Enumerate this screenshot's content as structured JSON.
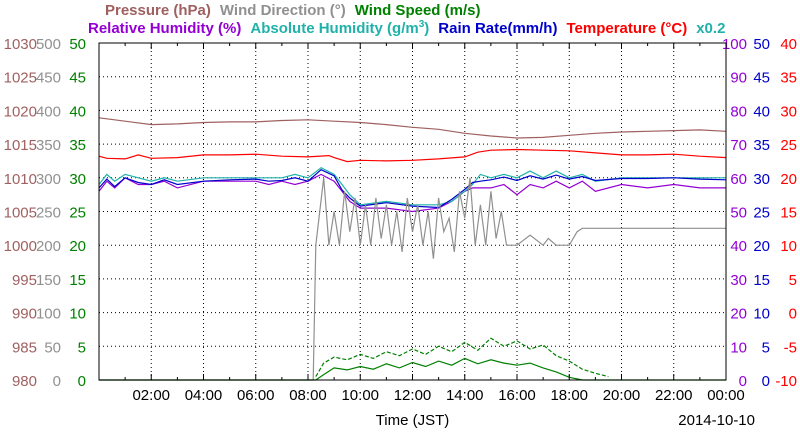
{
  "chart_data": {
    "type": "line",
    "legend_row1": [
      {
        "text": "Pressure (hPa)",
        "color": "#a06060"
      },
      {
        "text": "Wind Direction (°)",
        "color": "#909090"
      },
      {
        "text": "Wind Speed (m/s)",
        "color": "#008000"
      }
    ],
    "legend_row2": [
      {
        "text": "Relative Humidity (%)",
        "color": "#9400d3"
      },
      {
        "text": "Absolute Humidity (g/m",
        "sup": "3",
        "tail": ")",
        "color": "#20b2aa"
      },
      {
        "text": "Rain Rate(mm/h)",
        "color": "#0000cd"
      },
      {
        "text": "Temperature (°C)",
        "color": "#ff0000"
      },
      {
        "text": "x0.2",
        "color": "#20b2aa"
      }
    ],
    "xlabel": "Time (JST)",
    "date": "2014-10-10",
    "x_ticks": [
      "02:00",
      "04:00",
      "06:00",
      "08:00",
      "10:00",
      "12:00",
      "14:00",
      "16:00",
      "18:00",
      "20:00",
      "22:00",
      "00:00"
    ],
    "axes": {
      "pressure": {
        "color": "#a06060",
        "ticks": [
          "1030",
          "1025",
          "1020",
          "1015",
          "1010",
          "1005",
          "1000",
          "995",
          "990",
          "985",
          "980"
        ],
        "range": [
          980,
          1030
        ]
      },
      "wind_direction": {
        "color": "#909090",
        "ticks": [
          "500",
          "450",
          "400",
          "350",
          "300",
          "250",
          "200",
          "150",
          "100",
          "50",
          "0"
        ],
        "range": [
          0,
          500
        ]
      },
      "wind_speed": {
        "color": "#008000",
        "ticks": [
          "50",
          "45",
          "40",
          "35",
          "30",
          "25",
          "20",
          "15",
          "10",
          "5",
          "0"
        ],
        "range": [
          0,
          50
        ]
      },
      "humidity": {
        "color": "#9400d3",
        "ticks": [
          "100",
          "90",
          "80",
          "70",
          "60",
          "50",
          "40",
          "30",
          "20",
          "10",
          "0"
        ],
        "range": [
          0,
          100
        ]
      },
      "rain_rate": {
        "color": "#0000cd",
        "ticks": [
          "50",
          "45",
          "40",
          "35",
          "30",
          "25",
          "20",
          "15",
          "10",
          "5",
          "0"
        ],
        "range": [
          0,
          50
        ]
      },
      "temperature": {
        "color": "#ff0000",
        "ticks": [
          "40",
          "35",
          "30",
          "25",
          "20",
          "15",
          "10",
          "5",
          "0",
          "-5",
          "-10"
        ],
        "range": [
          -10,
          40
        ]
      }
    },
    "hours_range": [
      0,
      24
    ],
    "series": [
      {
        "name": "Pressure (hPa)",
        "axis": "pressure",
        "color": "#a06060",
        "x": [
          0,
          1,
          2,
          3,
          4,
          5,
          6,
          7,
          8,
          9,
          10,
          11,
          12,
          13,
          14,
          15,
          16,
          17,
          18,
          19,
          20,
          21,
          22,
          23,
          24
        ],
        "y": [
          1018.9,
          1018.4,
          1017.9,
          1018.0,
          1018.2,
          1018.3,
          1018.3,
          1018.5,
          1018.6,
          1018.4,
          1018.2,
          1017.9,
          1017.5,
          1017.2,
          1016.6,
          1016.2,
          1015.9,
          1016.0,
          1016.3,
          1016.6,
          1016.8,
          1016.9,
          1017.0,
          1017.1,
          1016.9
        ]
      },
      {
        "name": "Temperature (°C)",
        "axis": "temperature",
        "color": "#ff0000",
        "x": [
          0,
          0.3,
          1,
          1.5,
          2,
          3,
          4,
          5,
          6,
          7,
          8,
          8.8,
          9,
          9.5,
          10,
          11,
          12,
          13,
          14,
          14.5,
          15,
          16,
          17,
          18,
          19,
          20,
          21,
          22,
          23,
          24
        ],
        "y": [
          23.2,
          22.9,
          22.8,
          23.4,
          22.9,
          23.0,
          23.4,
          23.4,
          23.5,
          23.2,
          23.1,
          23.3,
          23.0,
          22.4,
          22.6,
          22.5,
          22.6,
          22.8,
          23.1,
          23.8,
          24.1,
          24.2,
          24.1,
          24.0,
          23.7,
          23.4,
          23.4,
          23.5,
          23.2,
          23.0
        ]
      },
      {
        "name": "Relative Humidity (%)",
        "axis": "humidity",
        "color": "#9400d3",
        "x": [
          0,
          0.3,
          0.6,
          1,
          1.5,
          2,
          2.5,
          3,
          4,
          5,
          6,
          6.5,
          7,
          7.5,
          8,
          8.5,
          9,
          9.3,
          9.6,
          10,
          11,
          12,
          13,
          13.5,
          14,
          14.3,
          14.6,
          15,
          15.5,
          16,
          16.5,
          17,
          17.5,
          18,
          18.5,
          19,
          20,
          21,
          22,
          23,
          24
        ],
        "y": [
          56,
          59,
          57,
          60,
          58,
          58,
          59,
          57,
          59,
          59,
          59,
          58,
          59,
          58,
          59,
          61,
          59,
          56,
          53,
          51,
          51,
          50,
          51,
          53,
          56,
          57,
          57,
          57,
          58,
          55,
          58,
          57,
          59,
          57,
          59,
          56,
          58,
          57,
          58,
          57,
          57
        ]
      },
      {
        "name": "Absolute Humidity (g/m3)",
        "axis": "humidity",
        "color": "#20b2aa",
        "x": [
          0,
          0.3,
          0.6,
          1,
          1.5,
          2,
          2.5,
          3,
          4,
          5,
          6,
          6.5,
          7,
          7.5,
          8,
          8.5,
          9,
          9.3,
          9.6,
          10,
          11,
          12,
          13,
          13.5,
          14,
          14.3,
          14.6,
          15,
          15.5,
          16,
          16.5,
          17,
          17.5,
          18,
          18.5,
          19,
          20,
          21,
          22,
          23,
          24
        ],
        "y": [
          58,
          61,
          59,
          61,
          60,
          59,
          60,
          59,
          60,
          60,
          60,
          60,
          60,
          61,
          60,
          63,
          61,
          58,
          55,
          52,
          53,
          52,
          52,
          53,
          56,
          58,
          61,
          60,
          61,
          60,
          62,
          60,
          62,
          60,
          61,
          59,
          60,
          60,
          60,
          60,
          60
        ]
      },
      {
        "name": "Rain Rate(mm/h)",
        "axis": "rain_rate",
        "color": "#0000cd",
        "x": [
          0,
          0.3,
          0.6,
          1,
          1.5,
          2,
          2.5,
          3,
          4,
          5,
          6,
          6.5,
          7,
          7.5,
          8,
          8.5,
          9,
          9.3,
          9.6,
          10,
          11,
          12,
          13,
          13.5,
          14,
          14.3,
          14.6,
          15,
          15.5,
          16,
          16.5,
          17,
          17.5,
          18,
          18.5,
          19,
          20,
          21,
          22,
          23,
          24
        ],
        "y": [
          28.5,
          29.8,
          28.7,
          30.0,
          29.3,
          29.0,
          29.7,
          29.0,
          29.5,
          29.7,
          29.8,
          29.5,
          29.6,
          30.0,
          29.5,
          31.2,
          30.3,
          28.2,
          27.0,
          25.8,
          26.3,
          25.8,
          25.6,
          26.8,
          28.3,
          29.3,
          29.5,
          29.7,
          30.1,
          29.6,
          30.3,
          29.8,
          30.4,
          29.8,
          30.2,
          29.6,
          29.9,
          29.9,
          30.0,
          29.8,
          29.7
        ]
      },
      {
        "name": "Wind Direction (°)",
        "axis": "wind_direction",
        "color": "#909090",
        "x": [
          0,
          8.2,
          8.3,
          8.6,
          8.8,
          9.0,
          9.2,
          9.4,
          9.6,
          9.8,
          10.0,
          10.2,
          10.4,
          10.6,
          10.8,
          11.0,
          11.2,
          11.4,
          11.6,
          11.8,
          12.0,
          12.2,
          12.4,
          12.6,
          12.8,
          13.0,
          13.2,
          13.4,
          13.6,
          13.8,
          14.0,
          14.2,
          14.4,
          14.6,
          14.8,
          15.0,
          15.2,
          15.4,
          15.6,
          16.0,
          16.5,
          17.0,
          17.2,
          17.5,
          18.0,
          18.3,
          18.5,
          24
        ],
        "y": [
          0,
          0,
          200,
          300,
          200,
          250,
          200,
          280,
          220,
          270,
          200,
          260,
          200,
          270,
          210,
          260,
          200,
          250,
          190,
          270,
          220,
          260,
          200,
          250,
          180,
          270,
          220,
          240,
          190,
          280,
          240,
          300,
          200,
          260,
          200,
          280,
          210,
          250,
          200,
          200,
          215,
          200,
          210,
          200,
          200,
          220,
          225,
          225
        ]
      },
      {
        "name": "Wind Speed (m/s)",
        "axis": "wind_speed",
        "color": "#008000",
        "dashed": false,
        "x": [
          0,
          8.3,
          8.6,
          9.0,
          9.5,
          10.0,
          10.5,
          11.0,
          11.5,
          12.0,
          12.5,
          13.0,
          13.5,
          14.0,
          14.5,
          15.0,
          15.5,
          16.0,
          16.5,
          17.0,
          17.5,
          18.0,
          18.5,
          24
        ],
        "y": [
          0,
          0,
          0.8,
          1.8,
          1.5,
          2.0,
          1.6,
          2.4,
          1.8,
          2.6,
          2.0,
          2.8,
          2.2,
          3.2,
          2.4,
          3.0,
          2.5,
          2.2,
          2.5,
          1.8,
          1.2,
          0.4,
          0,
          0
        ]
      },
      {
        "name": "Wind Speed gust (m/s)",
        "axis": "wind_speed",
        "color": "#008000",
        "dashed": true,
        "x": [
          8.3,
          8.6,
          9.0,
          9.5,
          10.0,
          10.5,
          11.0,
          11.5,
          12.0,
          12.5,
          13.0,
          13.5,
          14.0,
          14.5,
          15.0,
          15.5,
          16.0,
          16.5,
          17.0,
          17.5,
          18.0,
          18.5,
          19.0,
          19.5
        ],
        "y": [
          0.5,
          2.5,
          3.4,
          3.0,
          3.8,
          3.2,
          4.2,
          3.6,
          4.6,
          3.8,
          5.0,
          4.2,
          5.6,
          4.4,
          6.2,
          5.0,
          5.8,
          4.6,
          5.2,
          3.6,
          2.8,
          1.6,
          1.0,
          0.5
        ]
      }
    ]
  }
}
